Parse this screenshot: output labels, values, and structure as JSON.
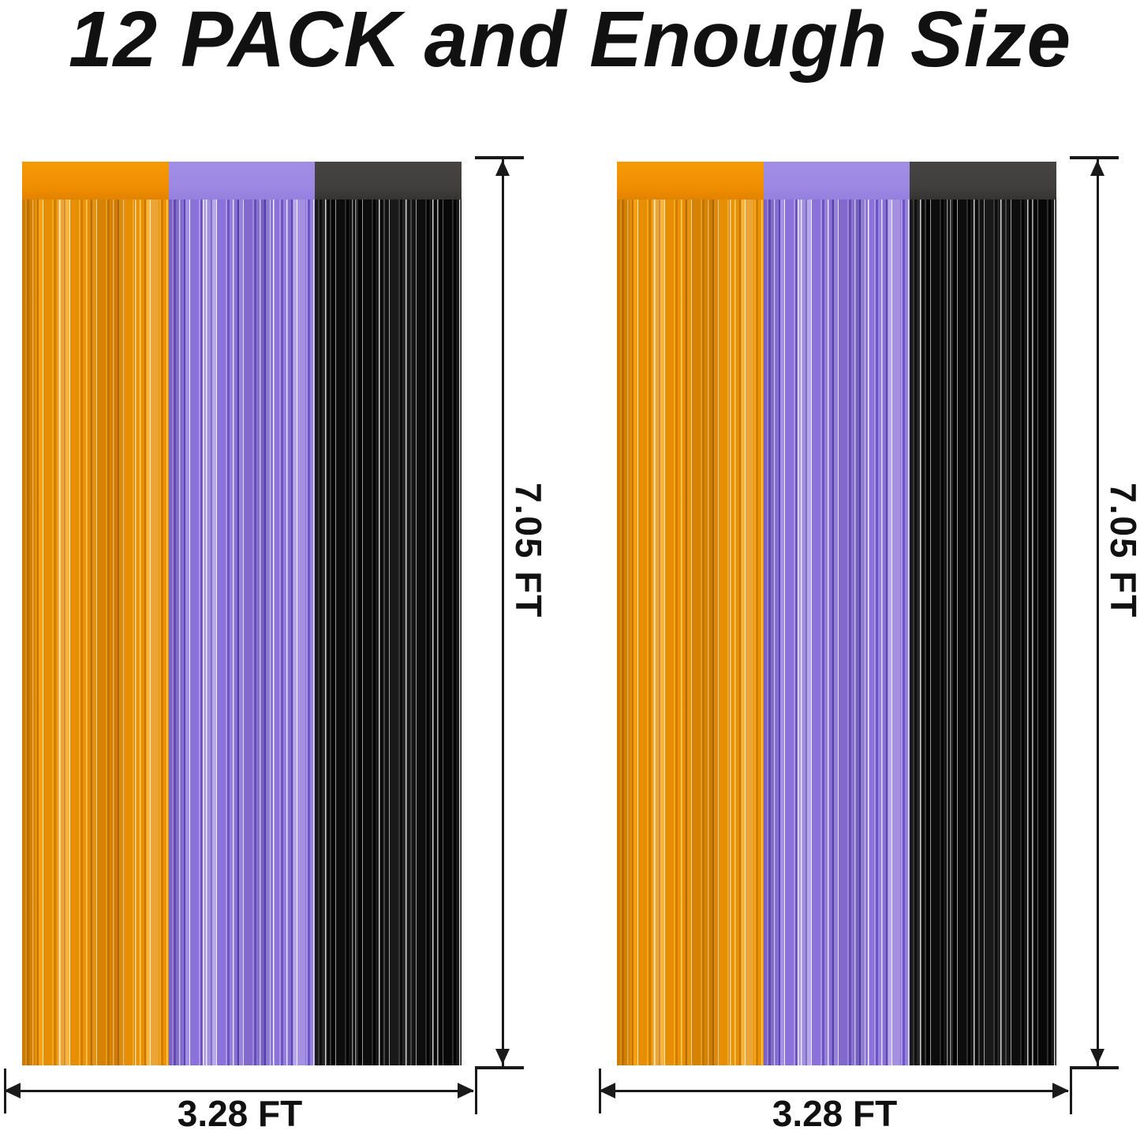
{
  "title": "12 PACK and Enough Size",
  "figures": [
    {
      "height_label": "7.05 FT",
      "width_label": "3.28 FT",
      "panels": [
        "Orange",
        "Purple",
        "Black"
      ]
    },
    {
      "height_label": "7.05 FT",
      "width_label": "3.28 FT",
      "panels": [
        "Orange",
        "Purple",
        "Black"
      ]
    }
  ],
  "colors": {
    "orange": "#F09200",
    "purple": "#9380E0",
    "purple_header": "#9C88E3",
    "black_foil": "#0D0D0D",
    "black_header": "#403E3C",
    "dim_line": "#1A1A1A",
    "text": "#111111",
    "background": "#FFFFFF"
  }
}
